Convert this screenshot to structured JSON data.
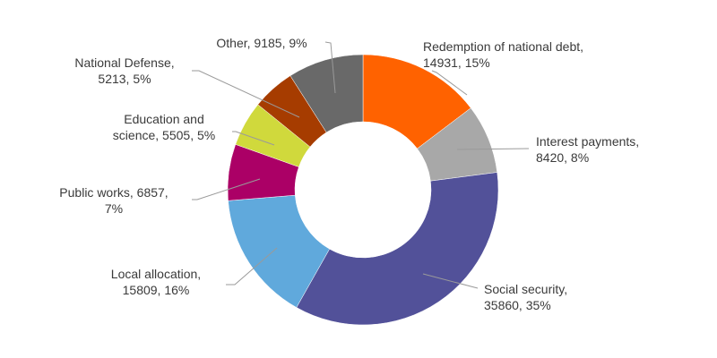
{
  "chart_data": {
    "type": "pie",
    "style": "donut",
    "title": "",
    "slices": [
      {
        "label": "Redemption of national debt",
        "value": 14931,
        "percent": "15%",
        "color": "#ff6200",
        "text_lines": [
          "Redemption of national debt,",
          "14931, 15%"
        ]
      },
      {
        "label": "Interest payments",
        "value": 8420,
        "percent": "8%",
        "color": "#a8a8a8",
        "text_lines": [
          "Interest payments,",
          "8420, 8%"
        ]
      },
      {
        "label": "Social security",
        "value": 35860,
        "percent": "35%",
        "color": "#525199",
        "text_lines": [
          "Social security,",
          "35860, 35%"
        ]
      },
      {
        "label": "Local allocation",
        "value": 15809,
        "percent": "16%",
        "color": "#60a9dc",
        "text_lines": [
          "Local allocation,",
          "15809, 16%"
        ]
      },
      {
        "label": "Public works",
        "value": 6857,
        "percent": "7%",
        "color": "#ab0066",
        "text_lines": [
          "Public works, 6857,",
          "7%"
        ]
      },
      {
        "label": "Education and science",
        "value": 5505,
        "percent": "5%",
        "color": "#d0d93c",
        "text_lines": [
          "Education and",
          "science, 5505, 5%"
        ]
      },
      {
        "label": "National Defense",
        "value": 5213,
        "percent": "5%",
        "color": "#a63c00",
        "text_lines": [
          "National Defense,",
          "5213, 5%"
        ]
      },
      {
        "label": "Other",
        "value": 9185,
        "percent": "9%",
        "color": "#696969",
        "text_lines": [
          "Other, 9185, 9%"
        ]
      }
    ]
  }
}
